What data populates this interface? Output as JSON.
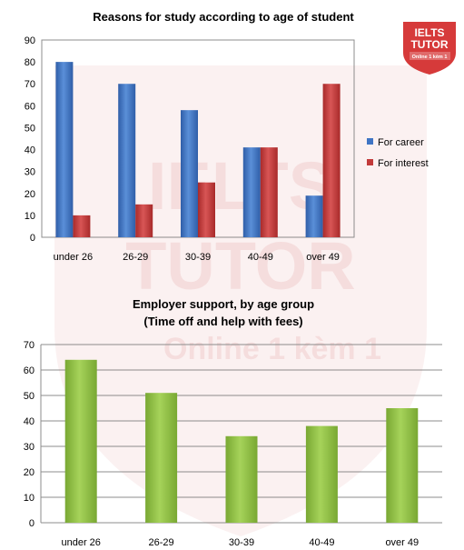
{
  "watermark": {
    "line1": "IELTS",
    "line2": "TUTOR",
    "line3": "Online 1 kèm 1",
    "color": "#c43a3a"
  },
  "logo": {
    "line1": "IELTS",
    "line2": "TUTOR",
    "line3": "Online 1 kèm 1",
    "color": "#d63a3a"
  },
  "chart_data": [
    {
      "type": "bar",
      "title": "Reasons  for study according to age of student",
      "categories": [
        "under 26",
        "26-29",
        "30-39",
        "40-49",
        "over 49"
      ],
      "series": [
        {
          "name": "For career",
          "values": [
            80,
            70,
            58,
            41,
            19
          ],
          "color": "#3f74c4"
        },
        {
          "name": "For interest",
          "values": [
            10,
            15,
            25,
            41,
            70
          ],
          "color": "#c23a3a"
        }
      ],
      "ylim": [
        0,
        90
      ],
      "yticks": [
        0,
        10,
        20,
        30,
        40,
        50,
        60,
        70,
        80,
        90
      ],
      "grid": false,
      "legend": "right"
    },
    {
      "type": "bar",
      "title": "Employer support, by age group",
      "subtitle": "(Time off and help with fees)",
      "categories": [
        "under 26",
        "26-29",
        "30-39",
        "40-49",
        "over 49"
      ],
      "values": [
        64,
        51,
        34,
        38,
        45
      ],
      "color": "#8fbe3f",
      "ylim": [
        0,
        70
      ],
      "yticks": [
        0,
        10,
        20,
        30,
        40,
        50,
        60,
        70
      ],
      "grid": true
    }
  ]
}
